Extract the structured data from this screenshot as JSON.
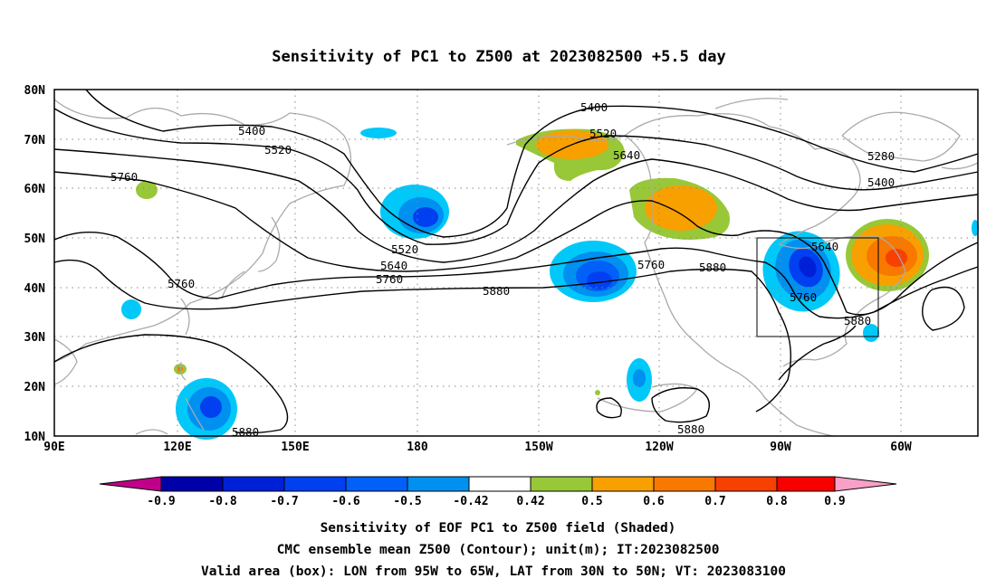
{
  "title": "Sensitivity of PC1 to Z500 at 2023082500 +5.5 day",
  "lat_labels": [
    "80N",
    "70N",
    "60N",
    "50N",
    "40N",
    "30N",
    "20N",
    "10N"
  ],
  "lon_labels": [
    "90E",
    "120E",
    "150E",
    "180",
    "150W",
    "120W",
    "90W",
    "60W"
  ],
  "contour_labels": [
    "5400",
    "5520",
    "5760",
    "5760",
    "5520",
    "5640",
    "5760",
    "5880",
    "5400",
    "5520",
    "5640",
    "5760",
    "5880",
    "5280",
    "5400",
    "5640",
    "5760",
    "5880",
    "5880",
    "5880"
  ],
  "colorbar": {
    "tick_labels": [
      "-0.9",
      "-0.8",
      "-0.7",
      "-0.6",
      "-0.5",
      "-0.42",
      "0.42",
      "0.5",
      "0.6",
      "0.7",
      "0.8",
      "0.9"
    ],
    "colors": [
      "#c0008a",
      "#0000a8",
      "#0020d8",
      "#0040f0",
      "#0060f8",
      "#0090f0",
      "#00c8f8",
      "#ffffff",
      "#98c838",
      "#f8a000",
      "#f87800",
      "#f84000",
      "#f80000",
      "#f8a0c8"
    ]
  },
  "box": {
    "text": "Valid area (box)",
    "lon": [
      "95W",
      "65W"
    ],
    "lat": [
      "30N",
      "50N"
    ]
  },
  "caption": [
    "Sensitivity of EOF PC1 to Z500 field (Shaded)",
    "CMC ensemble mean Z500 (Contour); unit(m); IT:2023082500",
    "Valid area (box): LON from 95W to 65W, LAT from 30N to 50N; VT: 2023083100"
  ]
}
